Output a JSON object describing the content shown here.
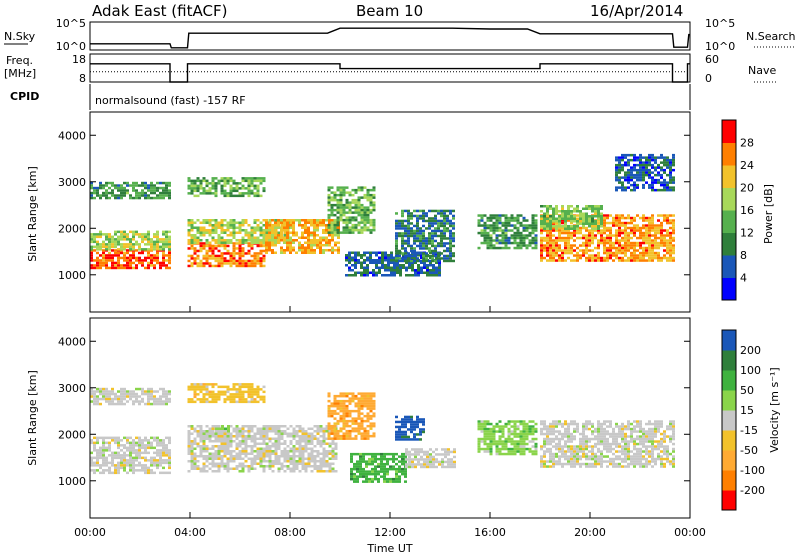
{
  "header": {
    "radar_title": "Adak East (fitACF)",
    "beam_title": "Beam 10",
    "date_title": "16/Apr/2014"
  },
  "colors": {
    "power_scale": [
      "#0000ff",
      "#1a57b8",
      "#2f7f3b",
      "#56b04e",
      "#a8d85a",
      "#f2c22b",
      "#ff7f00",
      "#ff0000"
    ],
    "velocity_scale": [
      "#ff0000",
      "#ff7f00",
      "#ffaa33",
      "#f2c22b",
      "#c8c8c8",
      "#8ad44a",
      "#3fb23f",
      "#2f7f3b",
      "#1a57b8"
    ],
    "trace": "#000000"
  },
  "chart_data": [
    {
      "type": "line",
      "name": "noise-panel",
      "left_label": "N.Sky",
      "right_label": "N.Search",
      "left_ticks": [
        "10^5",
        "10^0"
      ],
      "right_ticks": [
        "10^5",
        "10^0"
      ],
      "x_unit": "hours UT",
      "xlim": [
        0,
        24
      ],
      "series": [
        {
          "style": "solid",
          "points": [
            [
              0,
              0.22
            ],
            [
              3.2,
              0.22
            ],
            [
              3.25,
              0.08
            ],
            [
              3.9,
              0.08
            ],
            [
              3.95,
              0.6
            ],
            [
              9.5,
              0.6
            ],
            [
              10.0,
              0.78
            ],
            [
              14.5,
              0.78
            ],
            [
              16.0,
              0.75
            ],
            [
              17.5,
              0.75
            ],
            [
              18.0,
              0.58
            ],
            [
              23.3,
              0.58
            ],
            [
              23.35,
              0.1
            ],
            [
              23.9,
              0.1
            ],
            [
              23.95,
              0.55
            ],
            [
              24,
              0.55
            ]
          ]
        }
      ]
    },
    {
      "type": "line",
      "name": "frequency-panel",
      "left_label_lines": [
        "Freq.",
        "[MHz]"
      ],
      "right_label": "Nave",
      "left_ticks": [
        "18",
        "8"
      ],
      "right_ticks": [
        "60",
        "0"
      ],
      "left_ylim": [
        8,
        18
      ],
      "right_ylim": [
        0,
        60
      ],
      "x_unit": "hours UT",
      "xlim": [
        0,
        24
      ],
      "series": [
        {
          "name": "freq",
          "style": "solid",
          "points": [
            [
              0,
              14.5
            ],
            [
              3.2,
              14.5
            ],
            [
              3.2,
              8
            ],
            [
              3.9,
              8
            ],
            [
              3.9,
              14.5
            ],
            [
              10.0,
              14.5
            ],
            [
              10.0,
              12.8
            ],
            [
              18.0,
              12.8
            ],
            [
              18.0,
              14.5
            ],
            [
              23.3,
              14.5
            ],
            [
              23.3,
              8
            ],
            [
              23.9,
              8
            ],
            [
              23.9,
              14.5
            ],
            [
              24,
              14.5
            ]
          ]
        },
        {
          "name": "nave",
          "style": "dotted",
          "points": [
            [
              0,
              22
            ],
            [
              3.2,
              22
            ],
            [
              3.9,
              22
            ],
            [
              24,
              22
            ]
          ]
        }
      ]
    },
    {
      "type": "heatmap",
      "name": "power-panel",
      "cpid_label": "CPID",
      "cpid_text": "normalsound (fast) -157 RF",
      "ylabel": "Slant Range [km]",
      "xlabel": "",
      "y_ticks": [
        1000,
        2000,
        3000,
        4000
      ],
      "ylim": [
        200,
        4500
      ],
      "xlim": [
        0,
        24
      ],
      "colorbar_label": "Power [dB]",
      "colorbar_ticks": [
        4,
        8,
        12,
        16,
        20,
        24,
        28
      ],
      "colorbar_range": [
        0,
        32
      ],
      "echo_regions": [
        {
          "t": [
            0.0,
            3.2
          ],
          "r": [
            1150,
            1550
          ],
          "level": 0.92
        },
        {
          "t": [
            0.0,
            3.2
          ],
          "r": [
            1550,
            1950
          ],
          "level": 0.55
        },
        {
          "t": [
            0.0,
            3.2
          ],
          "r": [
            2650,
            3000
          ],
          "level": 0.35
        },
        {
          "t": [
            3.9,
            7.0
          ],
          "r": [
            1200,
            1700
          ],
          "level": 0.85
        },
        {
          "t": [
            3.9,
            8.0
          ],
          "r": [
            1700,
            2200
          ],
          "level": 0.6
        },
        {
          "t": [
            3.9,
            7.0
          ],
          "r": [
            2700,
            3100
          ],
          "level": 0.4
        },
        {
          "t": [
            7.0,
            10.0
          ],
          "r": [
            1500,
            2200
          ],
          "level": 0.75
        },
        {
          "t": [
            9.5,
            11.4
          ],
          "r": [
            1900,
            2900
          ],
          "level": 0.45
        },
        {
          "t": [
            10.2,
            14.0
          ],
          "r": [
            1000,
            1500
          ],
          "level": 0.2
        },
        {
          "t": [
            12.2,
            14.6
          ],
          "r": [
            1300,
            2400
          ],
          "level": 0.25
        },
        {
          "t": [
            15.5,
            17.8
          ],
          "r": [
            1600,
            2300
          ],
          "level": 0.35
        },
        {
          "t": [
            18.0,
            23.3
          ],
          "r": [
            1300,
            2300
          ],
          "level": 0.8
        },
        {
          "t": [
            18.0,
            20.5
          ],
          "r": [
            2000,
            2500
          ],
          "level": 0.5
        },
        {
          "t": [
            21.0,
            23.3
          ],
          "r": [
            2800,
            3600
          ],
          "level": 0.15
        }
      ]
    },
    {
      "type": "heatmap",
      "name": "velocity-panel",
      "ylabel": "Slant Range [km]",
      "xlabel": "Time UT",
      "y_ticks": [
        1000,
        2000,
        3000,
        4000
      ],
      "ylim": [
        200,
        4500
      ],
      "xlim": [
        0,
        24
      ],
      "x_tick_labels": [
        "00:00",
        "04:00",
        "08:00",
        "12:00",
        "16:00",
        "20:00",
        "00:00"
      ],
      "x_tick_hours": [
        0,
        4,
        8,
        12,
        16,
        20,
        24
      ],
      "colorbar_label": "Velocity [m s⁻¹]",
      "colorbar_ticks": [
        200,
        100,
        50,
        15,
        -15,
        -50,
        -100,
        -200
      ],
      "echo_regions": [
        {
          "t": [
            0.0,
            3.2
          ],
          "r": [
            1150,
            1950
          ],
          "class": 4
        },
        {
          "t": [
            0.0,
            3.2
          ],
          "r": [
            2650,
            3000
          ],
          "class": 4
        },
        {
          "t": [
            3.9,
            9.8
          ],
          "r": [
            1200,
            2200
          ],
          "class": 4
        },
        {
          "t": [
            3.9,
            7.0
          ],
          "r": [
            2700,
            3100
          ],
          "class": 3
        },
        {
          "t": [
            9.5,
            11.4
          ],
          "r": [
            1900,
            2900
          ],
          "class": 2
        },
        {
          "t": [
            5.0,
            5.6
          ],
          "r": [
            2050,
            2200
          ],
          "class": 5
        },
        {
          "t": [
            10.4,
            12.6
          ],
          "r": [
            1000,
            1600
          ],
          "class": 6
        },
        {
          "t": [
            12.2,
            13.4
          ],
          "r": [
            1900,
            2400
          ],
          "class": 8
        },
        {
          "t": [
            12.6,
            14.6
          ],
          "r": [
            1300,
            1700
          ],
          "class": 4
        },
        {
          "t": [
            15.5,
            17.8
          ],
          "r": [
            1600,
            2300
          ],
          "class": 5
        },
        {
          "t": [
            18.0,
            23.3
          ],
          "r": [
            1300,
            2300
          ],
          "class": 4
        }
      ]
    }
  ]
}
